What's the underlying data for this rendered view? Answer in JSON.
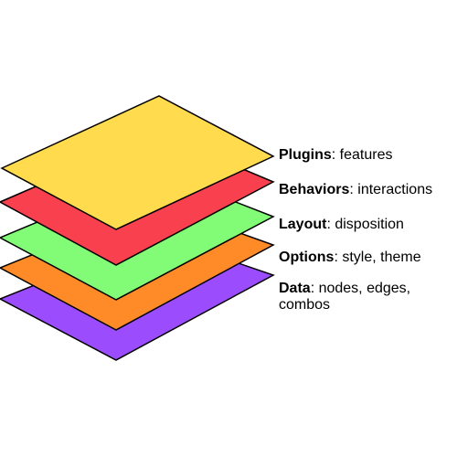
{
  "layers": [
    {
      "name": "Plugins",
      "detail": ": features",
      "detail2": "",
      "color": "#FFDB4D"
    },
    {
      "name": "Behaviors",
      "detail": ": interactions",
      "detail2": "",
      "color": "#F8404F"
    },
    {
      "name": "Layout",
      "detail": ": disposition",
      "detail2": "",
      "color": "#82FC76"
    },
    {
      "name": "Options",
      "detail": ": style, theme",
      "detail2": "",
      "color": "#FF8A28"
    },
    {
      "name": "Data",
      "detail": ": nodes, edges,",
      "detail2": "combos",
      "color": "#9B4DFD"
    }
  ],
  "stroke_color": "#000000"
}
